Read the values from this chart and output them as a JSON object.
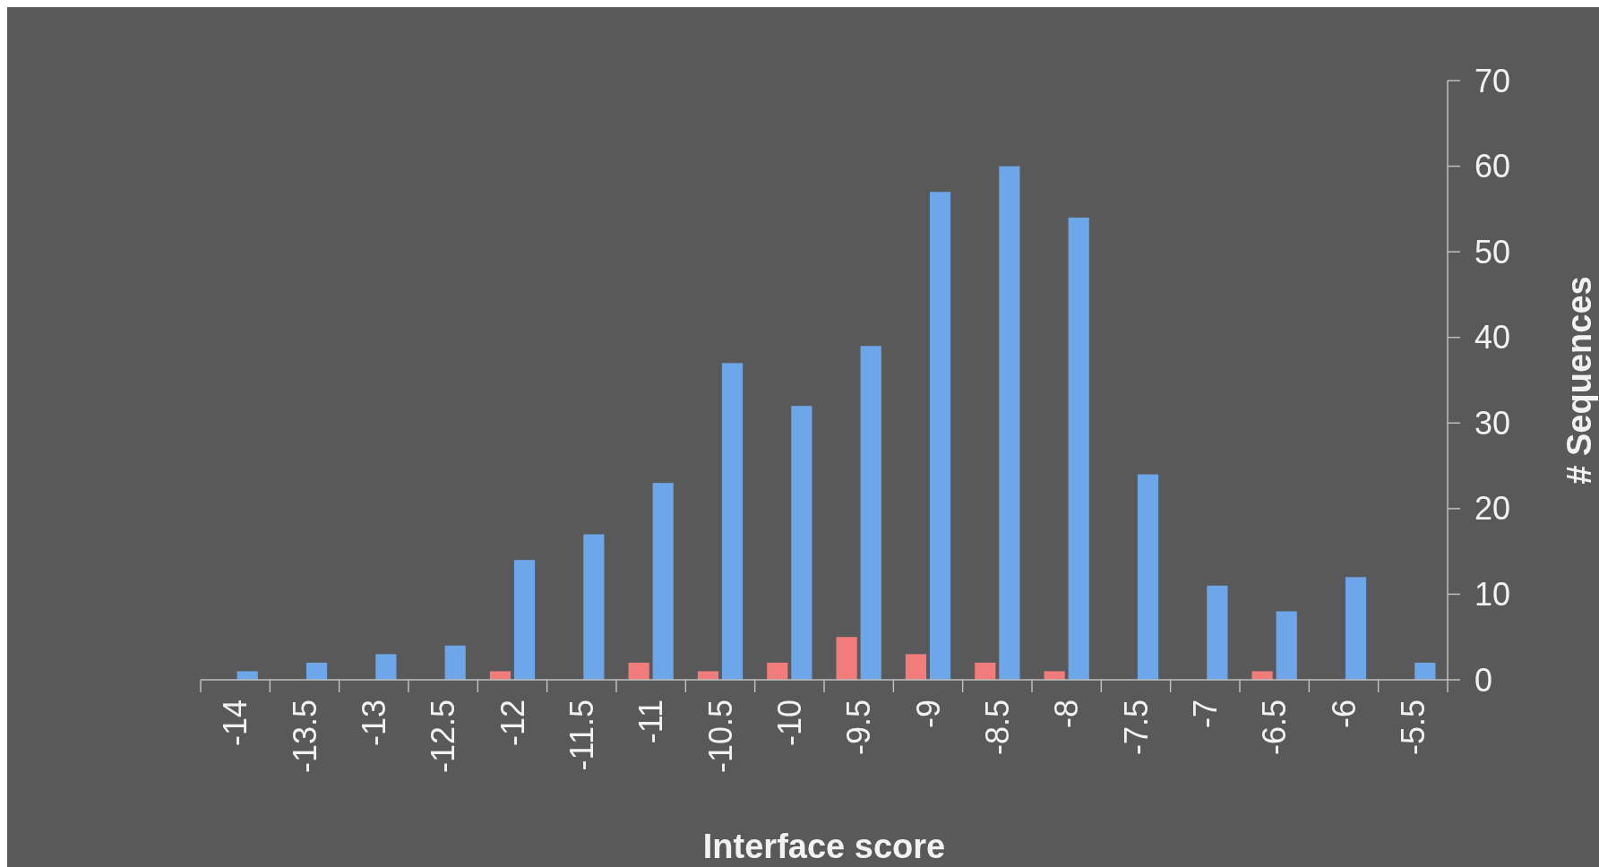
{
  "chart_data": {
    "type": "bar",
    "xlabel": "Interface score",
    "ylabel": "# Sequences",
    "categories": [
      "-14",
      "-13.5",
      "-13",
      "-12.5",
      "-12",
      "-11.5",
      "-11",
      "-10.5",
      "-10",
      "-9.5",
      "-9",
      "-8.5",
      "-8",
      "-7.5",
      "-7",
      "-6.5",
      "-6",
      "-5.5"
    ],
    "series": [
      {
        "color": "#f07c7c",
        "values": [
          0,
          0,
          0,
          0,
          1,
          0,
          2,
          1,
          2,
          5,
          3,
          2,
          1,
          0,
          0,
          1,
          0,
          0
        ]
      },
      {
        "color": "#6ea6ea",
        "values": [
          1,
          2,
          3,
          4,
          14,
          17,
          23,
          37,
          32,
          39,
          57,
          60,
          54,
          24,
          11,
          8,
          12,
          2
        ]
      }
    ],
    "ylim": [
      0,
      70
    ],
    "yticks": [
      0,
      10,
      20,
      30,
      40,
      50,
      60,
      70
    ],
    "grid": false
  }
}
